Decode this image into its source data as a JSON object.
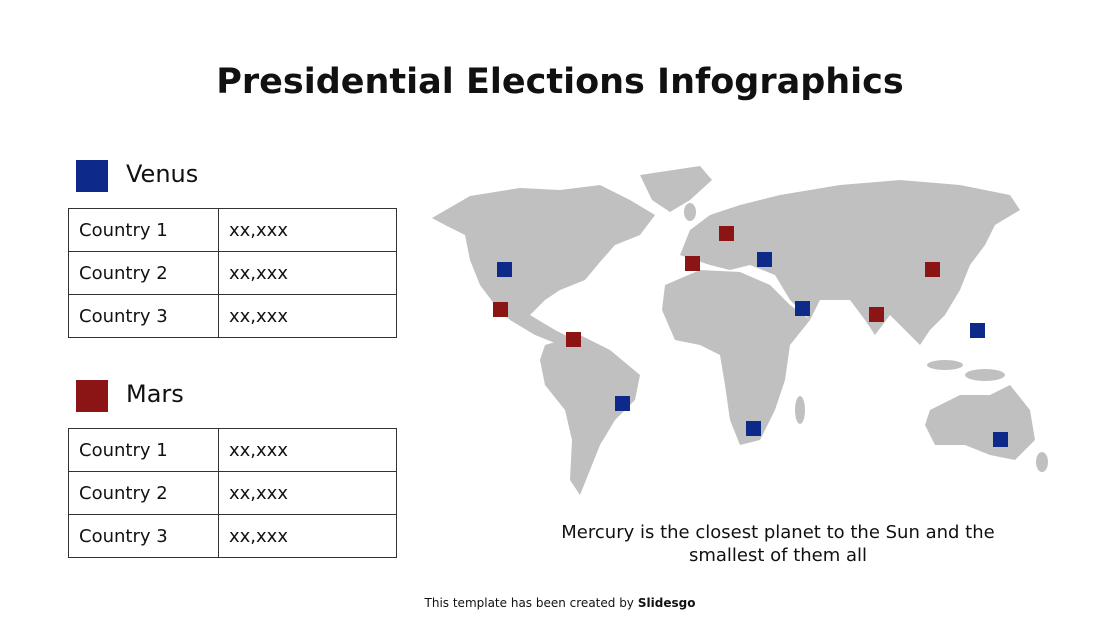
{
  "title": "Presidential Elections Infographics",
  "groups": [
    {
      "name": "Venus",
      "rows": [
        [
          "Country 1",
          "xx,xxx"
        ],
        [
          "Country 2",
          "xx,xxx"
        ],
        [
          "Country 3",
          "xx,xxx"
        ]
      ]
    },
    {
      "name": "Mars",
      "rows": [
        [
          "Country 1",
          "xx,xxx"
        ],
        [
          "Country 2",
          "xx,xxx"
        ],
        [
          "Country 3",
          "xx,xxx"
        ]
      ]
    }
  ],
  "caption": "Mercury is the closest planet to the Sun and the smallest of them all",
  "footer": {
    "text": "This template has been created by",
    "brand": "Slidesgo"
  }
}
